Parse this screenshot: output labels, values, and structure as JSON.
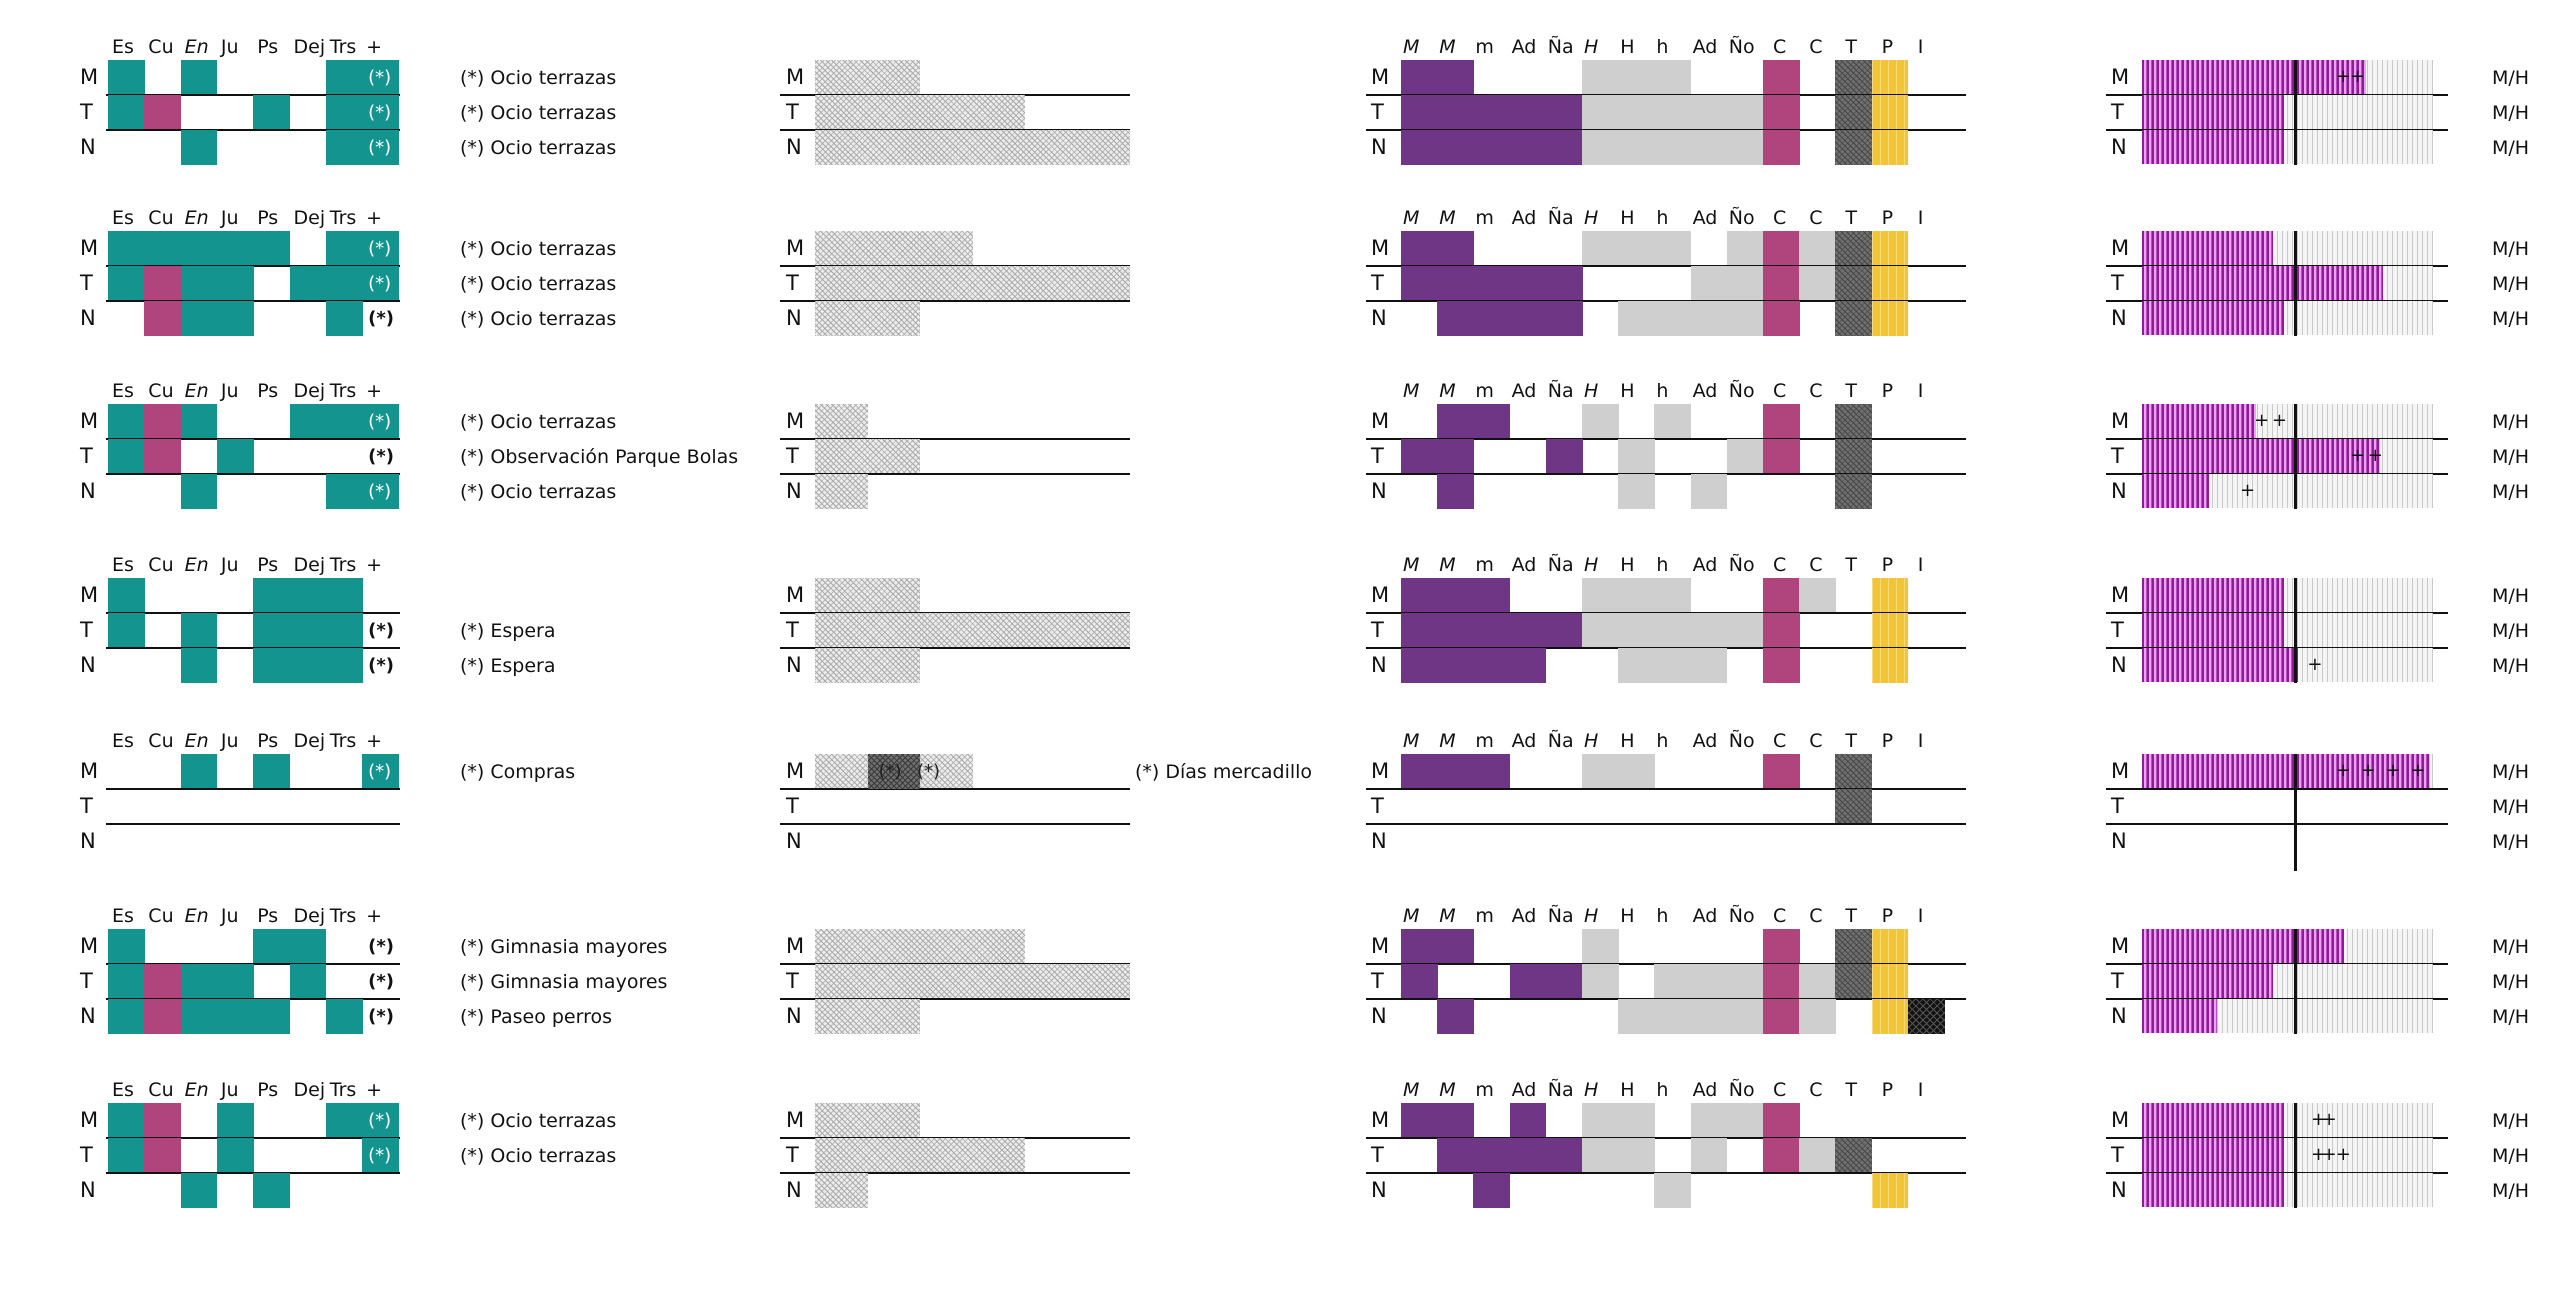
{
  "colors": {
    "teal": "#14948f",
    "magenta": "#b0457d",
    "purple": "#6f3686",
    "lightgray": "#cfcfcf",
    "yellow": "#f2c534",
    "white_ast": "#ffffff"
  },
  "labels": {
    "g1_headers": [
      "Es",
      "Cu",
      "En",
      "Ju",
      "Ps",
      "Dej",
      "Trs",
      "+"
    ],
    "g3_headers": [
      "M",
      "M",
      "m",
      "Ad",
      "Ña",
      "H",
      "H",
      "h",
      "Ad",
      "Ño",
      "C",
      "C",
      "T",
      "P",
      "I"
    ],
    "rows": [
      "M",
      "T",
      "N"
    ],
    "mh": "M/H",
    "asterisk": "(*)"
  },
  "notes": {
    "ocio": "(*) Ocio terrazas",
    "observacion": "(*) Observación Parque Bolas",
    "espera": "(*) Espera",
    "compras": "(*) Compras",
    "gimnasia": "(*) Gimnasia mayores",
    "paseo": "(*) Paseo perros",
    "mercadillo": "(*) Días mercadillo"
  },
  "blocks": [
    {
      "g1": {
        "M": [
          1,
          0,
          1,
          0,
          0,
          0,
          1,
          "w"
        ],
        "T": [
          1,
          2,
          0,
          0,
          1,
          0,
          1,
          "w"
        ],
        "N": [
          0,
          0,
          1,
          0,
          0,
          0,
          1,
          "w"
        ]
      },
      "notes": [
        "ocio",
        "ocio",
        "ocio"
      ],
      "g2": [
        3,
        6,
        9
      ],
      "g3": {
        "M": [
          1,
          1,
          0,
          0,
          0,
          1,
          1,
          1,
          0,
          0,
          1,
          0,
          1,
          1,
          0
        ],
        "T": [
          1,
          1,
          1,
          1,
          1,
          1,
          1,
          1,
          1,
          1,
          1,
          0,
          1,
          1,
          0
        ],
        "N": [
          1,
          1,
          1,
          1,
          1,
          1,
          1,
          1,
          1,
          1,
          1,
          0,
          1,
          1,
          0
        ]
      },
      "g4": {
        "M": [
          6.3,
          [
            5.6,
            6.0
          ]
        ],
        "T": [
          4.0,
          []
        ],
        "N": [
          4.0,
          []
        ]
      }
    },
    {
      "g1": {
        "M": [
          1,
          1,
          1,
          1,
          1,
          0,
          1,
          "w"
        ],
        "T": [
          1,
          2,
          1,
          1,
          0,
          1,
          1,
          "w"
        ],
        "N": [
          0,
          2,
          1,
          1,
          0,
          0,
          1,
          "b"
        ]
      },
      "notes": [
        "ocio",
        "ocio",
        "ocio"
      ],
      "g2": [
        4.5,
        9,
        3
      ],
      "g3": {
        "M": [
          1,
          1,
          0,
          0,
          0,
          1,
          1,
          1,
          0,
          1,
          1,
          1,
          1,
          1,
          0
        ],
        "T": [
          1,
          1,
          1,
          1,
          1,
          0,
          0,
          0,
          1,
          1,
          1,
          1,
          1,
          1,
          0
        ],
        "N": [
          0,
          1,
          1,
          1,
          1,
          0,
          1,
          1,
          1,
          1,
          1,
          0,
          1,
          1,
          0
        ]
      },
      "g4": {
        "M": [
          3.7,
          []
        ],
        "T": [
          6.8,
          []
        ],
        "N": [
          4.0,
          []
        ]
      }
    },
    {
      "g1": {
        "M": [
          1,
          2,
          1,
          0,
          0,
          1,
          1,
          "w"
        ],
        "T": [
          1,
          2,
          0,
          1,
          0,
          0,
          0,
          "b"
        ],
        "N": [
          0,
          0,
          1,
          0,
          0,
          0,
          1,
          "w"
        ]
      },
      "notes": [
        "ocio",
        "observacion",
        "ocio"
      ],
      "g2": [
        1.5,
        3,
        1.5
      ],
      "g3": {
        "M": [
          0,
          1,
          1,
          0,
          0,
          1,
          0,
          1,
          0,
          0,
          1,
          0,
          1,
          0,
          0
        ],
        "T": [
          1,
          1,
          0,
          0,
          1,
          0,
          1,
          0,
          0,
          1,
          1,
          0,
          1,
          0,
          0
        ],
        "N": [
          0,
          1,
          0,
          0,
          0,
          0,
          1,
          0,
          1,
          0,
          0,
          0,
          1,
          0,
          0
        ]
      },
      "g4": {
        "M": [
          3.2,
          [
            3.3,
            3.8
          ]
        ],
        "T": [
          6.7,
          [
            6.0,
            6.5
          ]
        ],
        "N": [
          1.9,
          [
            2.9
          ]
        ]
      }
    },
    {
      "g1": {
        "M": [
          1,
          0,
          0,
          0,
          1,
          1,
          1,
          "n"
        ],
        "T": [
          1,
          0,
          1,
          0,
          1,
          1,
          1,
          "b"
        ],
        "N": [
          0,
          0,
          1,
          0,
          1,
          1,
          1,
          "b"
        ]
      },
      "notes": [
        "",
        "espera",
        "espera"
      ],
      "g2": [
        3,
        9,
        3
      ],
      "g3": {
        "M": [
          1,
          1,
          1,
          0,
          0,
          1,
          1,
          1,
          0,
          0,
          1,
          1,
          0,
          1,
          0
        ],
        "T": [
          1,
          1,
          1,
          1,
          1,
          1,
          1,
          1,
          1,
          1,
          1,
          0,
          0,
          1,
          0
        ],
        "N": [
          1,
          1,
          1,
          1,
          0,
          0,
          1,
          1,
          1,
          0,
          1,
          0,
          0,
          1,
          0
        ]
      },
      "g4": {
        "M": [
          4.0,
          []
        ],
        "T": [
          4.0,
          []
        ],
        "N": [
          4.4,
          [
            4.8
          ]
        ]
      }
    },
    {
      "g1": {
        "M": [
          0,
          0,
          1,
          0,
          1,
          0,
          0,
          "w"
        ],
        "T": [
          0,
          0,
          0,
          0,
          0,
          0,
          0,
          "n"
        ],
        "N": [
          0,
          0,
          0,
          0,
          0,
          0,
          0,
          "n"
        ]
      },
      "notes": [
        "compras",
        "",
        ""
      ],
      "g2": [
        4.5,
        0,
        0
      ],
      "g3": {
        "M": [
          1,
          1,
          1,
          0,
          0,
          1,
          1,
          0,
          0,
          0,
          1,
          0,
          1,
          0,
          0
        ],
        "T": [
          0,
          0,
          0,
          0,
          0,
          0,
          0,
          0,
          0,
          0,
          0,
          0,
          1,
          0,
          0
        ],
        "N": [
          0,
          0,
          0,
          0,
          0,
          0,
          0,
          0,
          0,
          0,
          0,
          0,
          0,
          0,
          0
        ]
      },
      "g4": {
        "M": [
          8.1,
          [
            5.6,
            6.3,
            7.0,
            7.7
          ]
        ],
        "T": [
          0,
          []
        ],
        "N": [
          0,
          []
        ]
      }
    },
    {
      "g1": {
        "M": [
          1,
          0,
          0,
          0,
          1,
          1,
          0,
          "b"
        ],
        "T": [
          1,
          2,
          1,
          1,
          0,
          1,
          0,
          "b"
        ],
        "N": [
          1,
          2,
          1,
          1,
          1,
          0,
          1,
          "b"
        ]
      },
      "notes": [
        "gimnasia",
        "gimnasia",
        "paseo"
      ],
      "g2": [
        6,
        9,
        3
      ],
      "g3": {
        "M": [
          1,
          1,
          0,
          0,
          0,
          1,
          0,
          0,
          0,
          0,
          1,
          0,
          1,
          1,
          0
        ],
        "T": [
          1,
          0,
          0,
          1,
          1,
          1,
          0,
          1,
          1,
          1,
          1,
          1,
          1,
          1,
          0
        ],
        "N": [
          0,
          1,
          0,
          0,
          0,
          0,
          1,
          1,
          1,
          1,
          1,
          1,
          0,
          1,
          2
        ]
      },
      "g4": {
        "M": [
          5.7,
          []
        ],
        "T": [
          3.7,
          []
        ],
        "N": [
          2.1,
          []
        ]
      }
    },
    {
      "g1": {
        "M": [
          1,
          2,
          0,
          1,
          0,
          0,
          1,
          "w"
        ],
        "T": [
          1,
          2,
          0,
          1,
          0,
          0,
          0,
          "w"
        ],
        "N": [
          0,
          0,
          1,
          0,
          1,
          0,
          0,
          "n"
        ]
      },
      "notes": [
        "ocio",
        "ocio",
        ""
      ],
      "g2": [
        3,
        6,
        1.5
      ],
      "g3": {
        "M": [
          1,
          1,
          0,
          1,
          0,
          1,
          1,
          0,
          1,
          1,
          1,
          0,
          0,
          0,
          0
        ],
        "T": [
          0,
          1,
          1,
          1,
          1,
          1,
          1,
          0,
          1,
          0,
          1,
          1,
          1,
          0,
          0
        ],
        "N": [
          0,
          0,
          1,
          0,
          0,
          0,
          0,
          1,
          0,
          0,
          0,
          0,
          0,
          1,
          0
        ]
      },
      "g4": {
        "M": [
          4.0,
          [
            4.9,
            5.2
          ]
        ],
        "T": [
          4.0,
          [
            4.9,
            5.2,
            5.6
          ]
        ],
        "N": [
          4.0,
          []
        ]
      }
    }
  ]
}
